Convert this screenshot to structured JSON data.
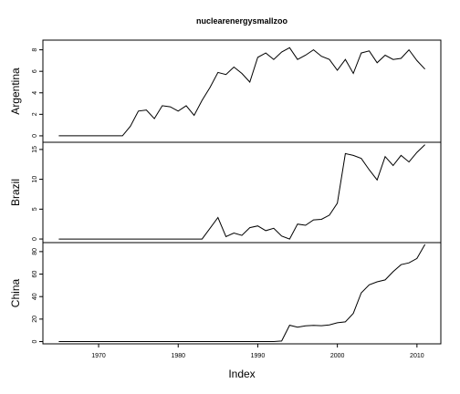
{
  "chart_data": {
    "type": "line",
    "title": "nuclearenergysmallzoo",
    "xlabel": "Index",
    "xlim": [
      1963,
      2013
    ],
    "x_ticks": [
      "1970",
      "1980",
      "1990",
      "2000",
      "2010"
    ],
    "x": [
      1965,
      1966,
      1967,
      1968,
      1969,
      1970,
      1971,
      1972,
      1973,
      1974,
      1975,
      1976,
      1977,
      1978,
      1979,
      1980,
      1981,
      1982,
      1983,
      1984,
      1985,
      1986,
      1987,
      1988,
      1989,
      1990,
      1991,
      1992,
      1993,
      1994,
      1995,
      1996,
      1997,
      1998,
      1999,
      2000,
      2001,
      2002,
      2003,
      2004,
      2005,
      2006,
      2007,
      2008,
      2009,
      2010,
      2011
    ],
    "panels": [
      {
        "name": "Argentina",
        "ylim": [
          -0.6,
          8.9
        ],
        "y_ticks": [
          "0",
          "2",
          "4",
          "6",
          "8"
        ],
        "values": [
          0,
          0,
          0,
          0,
          0,
          0,
          0,
          0,
          0,
          0.9,
          2.3,
          2.4,
          1.6,
          2.8,
          2.7,
          2.3,
          2.8,
          1.9,
          3.3,
          4.5,
          5.9,
          5.7,
          6.4,
          5.8,
          5.0,
          7.3,
          7.7,
          7.1,
          7.8,
          8.2,
          7.1,
          7.5,
          8.0,
          7.4,
          7.1,
          6.1,
          7.1,
          5.8,
          7.7,
          7.9,
          6.8,
          7.5,
          7.1,
          7.2,
          8.0,
          7.0,
          6.2
        ]
      },
      {
        "name": "Brazil",
        "ylim": [
          -0.6,
          16.2
        ],
        "y_ticks": [
          "0",
          "5",
          "10",
          "15"
        ],
        "values": [
          0,
          0,
          0,
          0,
          0,
          0,
          0,
          0,
          0,
          0,
          0,
          0,
          0,
          0,
          0,
          0,
          0,
          0,
          0,
          1.8,
          3.6,
          0.4,
          1.0,
          0.6,
          1.9,
          2.2,
          1.4,
          1.8,
          0.5,
          0,
          2.5,
          2.3,
          3.2,
          3.3,
          4.0,
          6.0,
          14.3,
          14.0,
          13.5,
          11.6,
          9.9,
          13.8,
          12.3,
          14.0,
          12.9,
          14.5,
          15.8
        ]
      },
      {
        "name": "China",
        "ylim": [
          -2,
          88
        ],
        "y_ticks": [
          "0",
          "20",
          "40",
          "60",
          "80"
        ],
        "values": [
          0,
          0,
          0,
          0,
          0,
          0,
          0,
          0,
          0,
          0,
          0,
          0,
          0,
          0,
          0,
          0,
          0,
          0,
          0,
          0,
          0,
          0,
          0,
          0,
          0,
          0,
          0,
          0,
          0.5,
          14.5,
          12.8,
          14.0,
          14.4,
          14.1,
          14.9,
          16.7,
          17.5,
          25.1,
          43.3,
          50.5,
          53.1,
          54.8,
          62.1,
          68.4,
          70.0,
          73.9,
          86.4
        ]
      }
    ]
  }
}
